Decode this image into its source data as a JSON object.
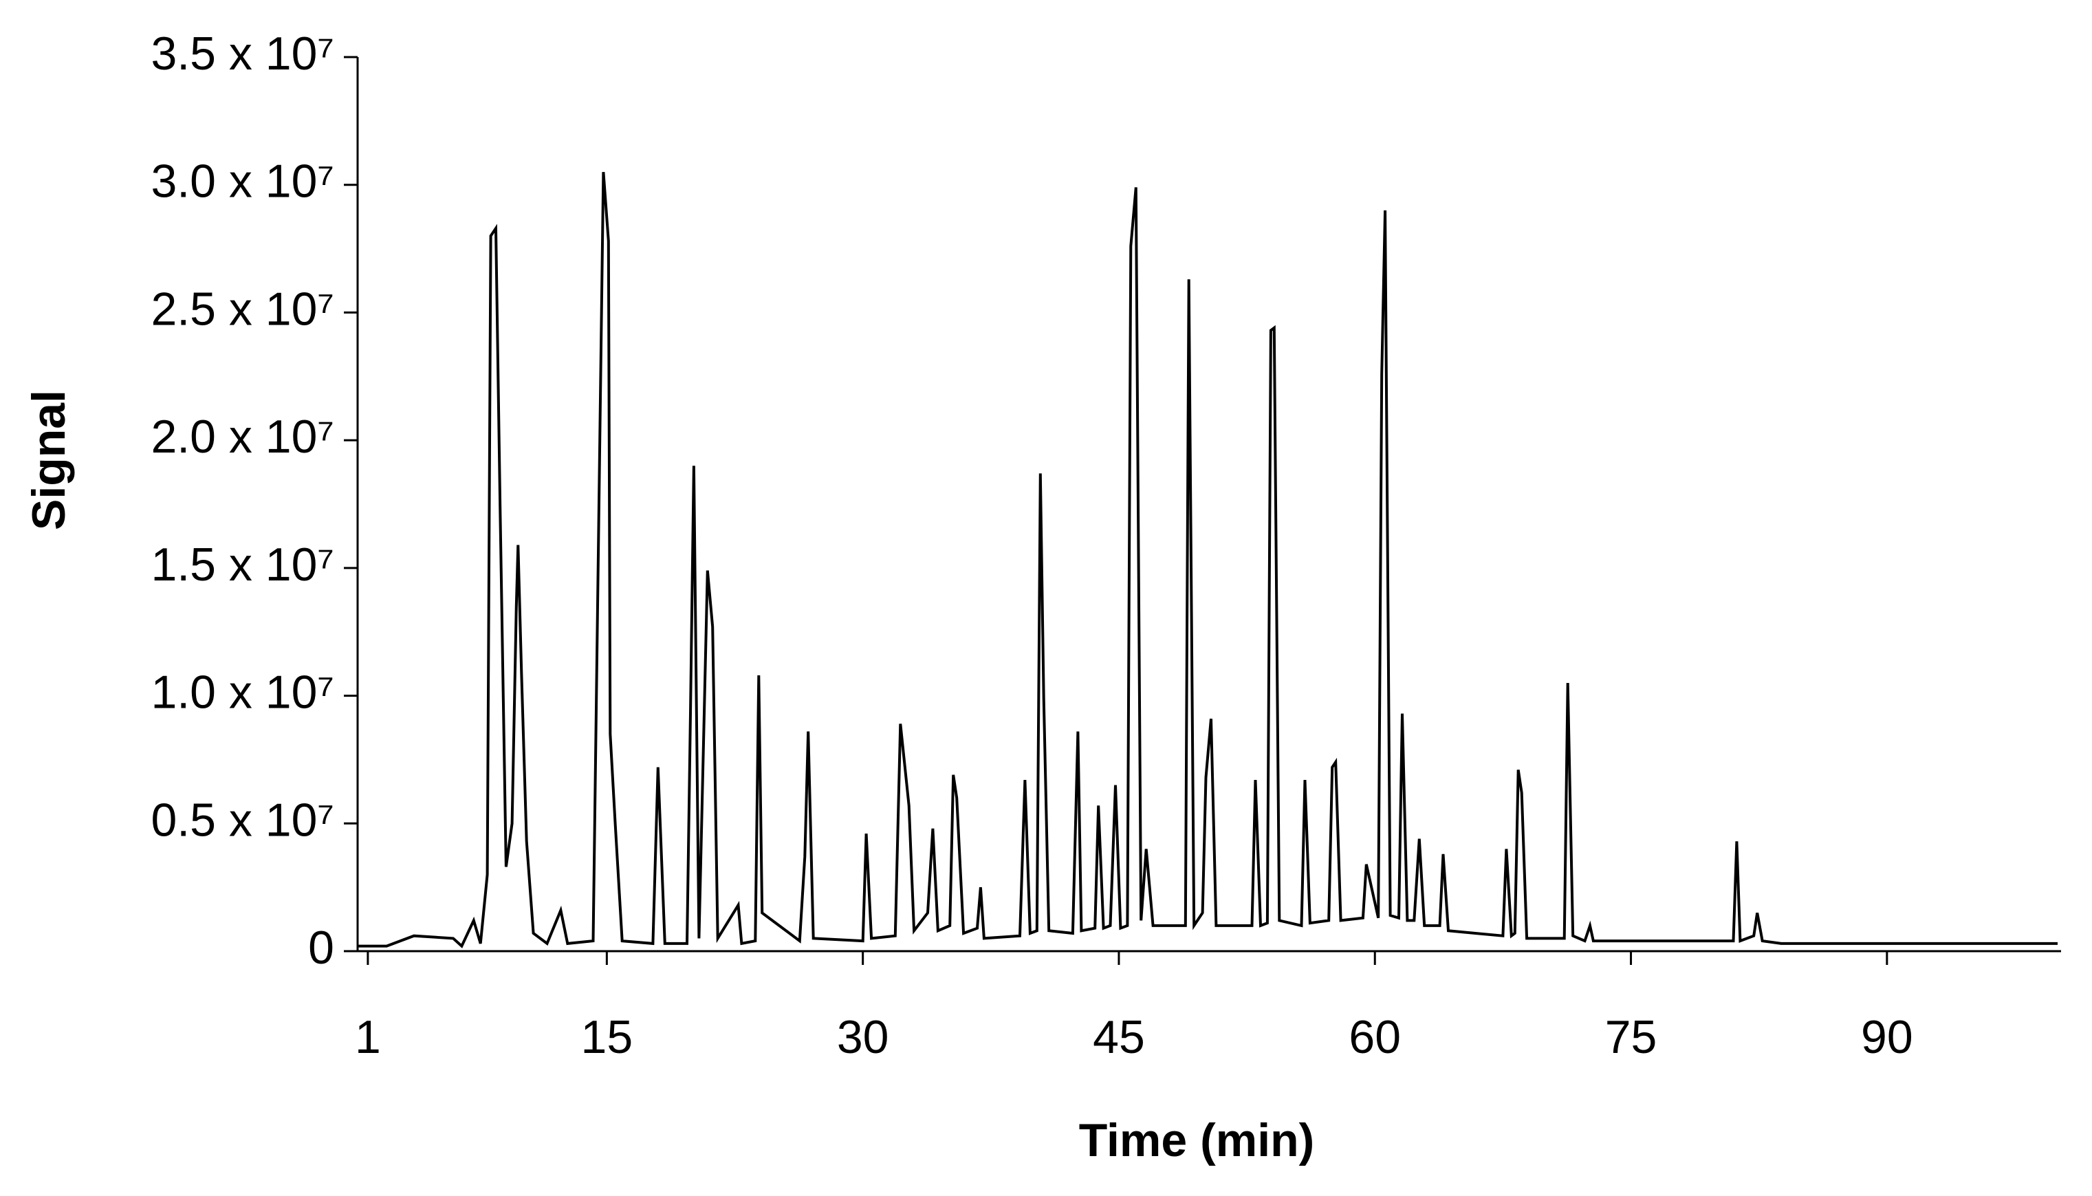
{
  "chart_data": {
    "type": "line",
    "xlabel": "Time (min)",
    "ylabel": "Signal",
    "xlim": [
      0.4,
      100.2
    ],
    "xticks": [
      1,
      15,
      30,
      45,
      60,
      75,
      90
    ],
    "ylim": [
      0,
      35000000
    ],
    "yticks": [
      0,
      {
        "value": 5000000,
        "label": "0.5 x 10⁷"
      },
      {
        "value": 10000000,
        "label": "1.0 x 10⁷"
      },
      {
        "value": 15000000,
        "label": "1.5 x 10⁷"
      },
      {
        "value": 20000000,
        "label": "2.0 x 10⁷"
      },
      {
        "value": 25000000,
        "label": "2.5 x 10⁷"
      },
      {
        "value": 30000000,
        "label": "3.0 x 10⁷"
      },
      {
        "value": 35000000,
        "label": "3.5 x 10⁷"
      }
    ],
    "grid": false,
    "x": [
      0.4,
      2.1,
      3.7,
      6.0,
      6.5,
      7.2,
      7.6,
      8.0,
      8.2,
      8.5,
      8.75,
      9.1,
      9.45,
      9.7,
      9.8,
      10.0,
      10.3,
      10.7,
      11.5,
      12.3,
      12.7,
      14.2,
      14.8,
      15.1,
      15.2,
      15.5,
      15.9,
      17.7,
      18.0,
      18.4,
      19.7,
      19.9,
      20.1,
      20.4,
      20.9,
      21.2,
      21.5,
      22.7,
      22.9,
      23.7,
      23.9,
      24.1,
      26.3,
      26.6,
      26.8,
      27.1,
      30.0,
      30.2,
      30.5,
      31.9,
      32.2,
      32.7,
      33.0,
      33.8,
      34.1,
      34.4,
      35.1,
      35.3,
      35.5,
      35.9,
      36.7,
      36.9,
      37.1,
      39.2,
      39.5,
      39.8,
      40.2,
      40.4,
      40.6,
      40.9,
      42.3,
      42.6,
      42.8,
      43.6,
      43.8,
      44.1,
      44.5,
      44.8,
      45.1,
      45.5,
      45.7,
      46.0,
      46.3,
      46.6,
      47.0,
      48.9,
      49.1,
      49.4,
      49.9,
      50.1,
      50.4,
      50.7,
      52.8,
      53.0,
      53.3,
      53.7,
      53.9,
      54.1,
      54.4,
      55.7,
      55.9,
      56.2,
      57.3,
      57.5,
      57.7,
      58.0,
      59.3,
      59.5,
      60.2,
      60.4,
      60.6,
      60.9,
      61.4,
      61.6,
      61.9,
      62.3,
      62.6,
      62.9,
      63.8,
      64.0,
      64.3,
      67.5,
      67.7,
      68.0,
      68.2,
      68.4,
      68.6,
      68.9,
      71.1,
      71.3,
      71.6,
      72.3,
      72.6,
      72.8,
      81.0,
      81.2,
      81.4,
      82.2,
      82.4,
      82.7,
      83.8,
      88.8,
      100.0
    ],
    "series": [
      {
        "color": "#000000",
        "values": [
          200000,
          200000,
          600000,
          500000,
          200000,
          1200000,
          300000,
          3000000,
          28000000,
          28300000,
          17400000,
          3300000,
          5000000,
          13500000,
          15900000,
          10900000,
          4300000,
          700000,
          300000,
          1600000,
          300000,
          400000,
          30500000,
          27800000,
          8500000,
          4900000,
          400000,
          300000,
          7200000,
          300000,
          300000,
          9300000,
          19000000,
          500000,
          14900000,
          12700000,
          500000,
          1800000,
          300000,
          400000,
          10800000,
          1500000,
          400000,
          3700000,
          8600000,
          500000,
          400000,
          4600000,
          500000,
          600000,
          8900000,
          5700000,
          800000,
          1500000,
          4800000,
          800000,
          1000000,
          6900000,
          6000000,
          700000,
          900000,
          2500000,
          500000,
          600000,
          6700000,
          700000,
          800000,
          18700000,
          9900000,
          800000,
          700000,
          8600000,
          800000,
          900000,
          5700000,
          900000,
          1000000,
          6500000,
          900000,
          1000000,
          27600000,
          29900000,
          1200000,
          4000000,
          1000000,
          1000000,
          26300000,
          1000000,
          1500000,
          6800000,
          9100000,
          1000000,
          1000000,
          6700000,
          1000000,
          1100000,
          24300000,
          24400000,
          1200000,
          1000000,
          6700000,
          1100000,
          1200000,
          7200000,
          7400000,
          1200000,
          1300000,
          3400000,
          1300000,
          22600000,
          29000000,
          1400000,
          1300000,
          9300000,
          1200000,
          1200000,
          4400000,
          1000000,
          1000000,
          3800000,
          800000,
          600000,
          4000000,
          600000,
          700000,
          7100000,
          6200000,
          500000,
          500000,
          10500000,
          600000,
          400000,
          1000000,
          400000,
          400000,
          4300000,
          400000,
          600000,
          1500000,
          400000,
          300000,
          300000,
          300000
        ]
      }
    ]
  }
}
